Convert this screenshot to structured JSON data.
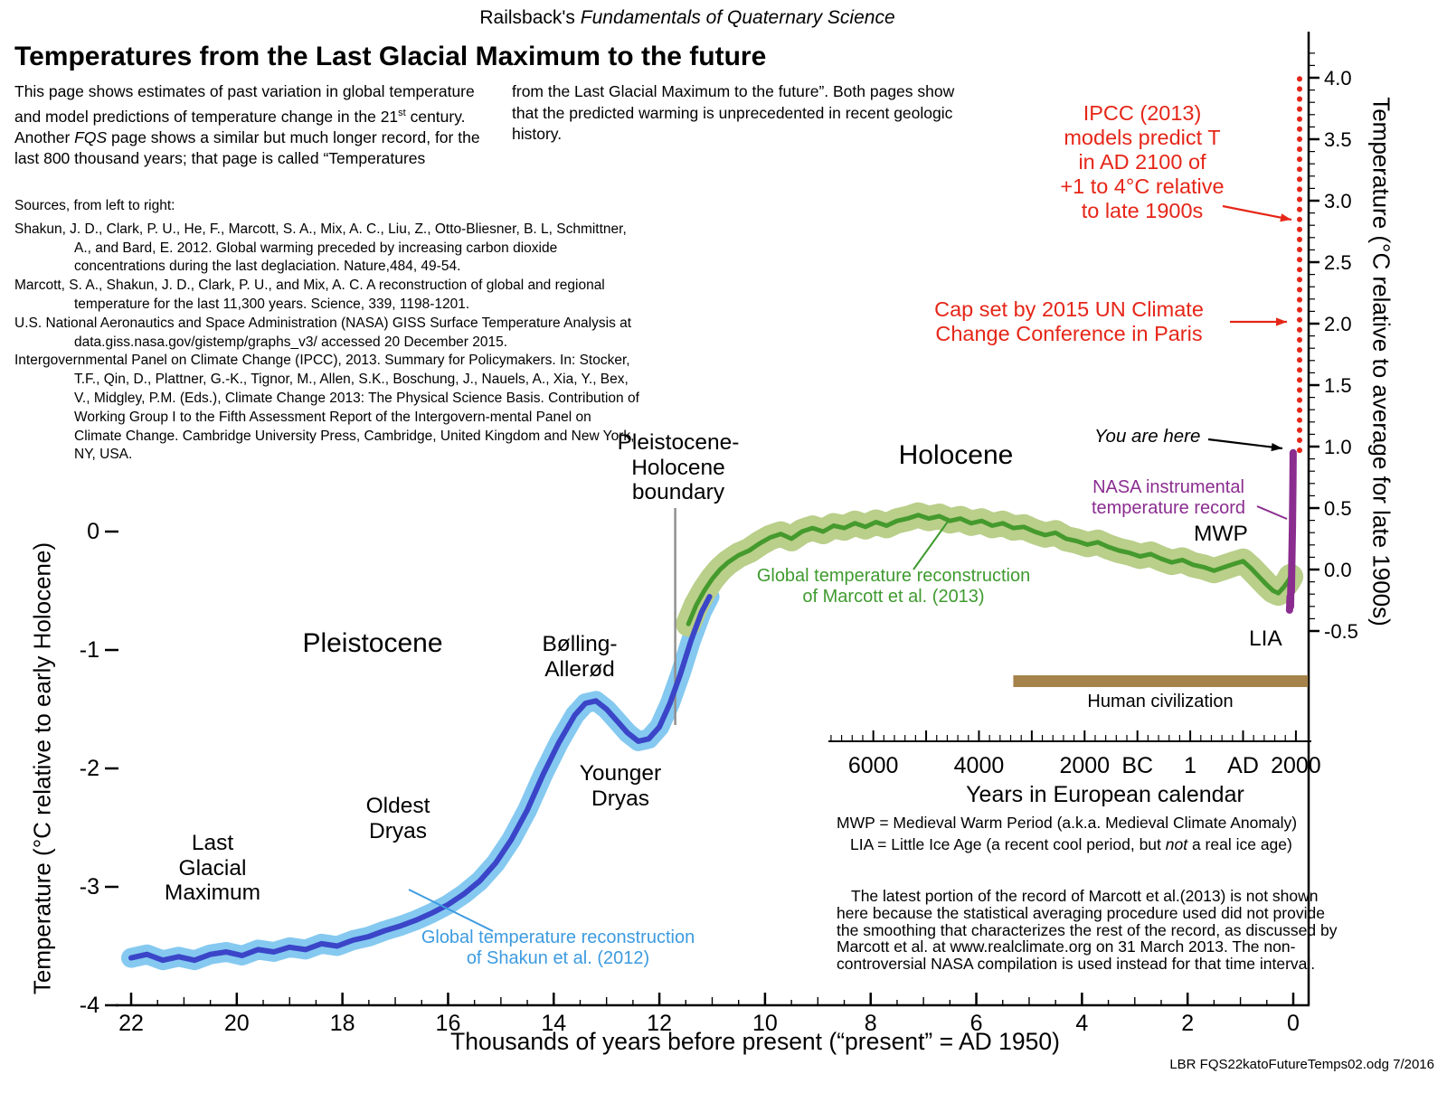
{
  "header": {
    "series_prefix": "Railsback's ",
    "series_italic": "Fundamentals of Quaternary Science",
    "page_title": "Temperatures from the Last Glacial Maximum to the future"
  },
  "intro": {
    "col1_seg1": "This page shows estimates of past variation in global temperature and model predictions of temperature change in the 21",
    "col1_sup": "st",
    "col1_seg2": " century. Another ",
    "col1_italic": "FQS",
    "col1_seg3": " page shows a similar but much longer record, for the last 800 thousand years; that page is called “Temperatures",
    "col2": "from the Last Glacial Maximum to the future”. Both pages show that the predicted warming is unprecedented in recent geologic history."
  },
  "sources": {
    "heading": "Sources, from left to right:",
    "items": [
      "Shakun, J. D., Clark, P. U., He, F., Marcott, S. A., Mix, A. C., Liu, Z., Otto-Bliesner, B. L, Schmittner, A., and Bard, E. 2012. Global warming preceded by increasing carbon dioxide concentrations during the last deglaciation. Nature,484, 49-54.",
      "Marcott, S. A., Shakun, J. D., Clark, P. U., and Mix, A. C. A reconstruction of global and regional temperature for the last 11,300 years. Science, 339, 1198-1201.",
      "U.S. National Aeronautics and Space Administration (NASA) GISS Surface Temperature Analysis at data.giss.nasa.gov/gistemp/graphs_v3/ accessed 20 December 2015.",
      "Intergovernmental Panel on Climate Change (IPCC), 2013. Summary for Policymakers. In: Stocker, T.F., Qin, D., Plattner, G.-K., Tignor, M., Allen, S.K., Boschung, J., Nauels, A., Xia, Y., Bex, V., Midgley, P.M. (Eds.), Climate Change 2013: The Physical Science Basis. Contribution of Working Group I to the Fifth Assessment Report of the Intergovern-mental Panel on Climate Change. Cambridge University Press, Cambridge, United Kingdom and New York, NY, USA."
    ]
  },
  "colors": {
    "red": "#e52618",
    "purple": "#8a2d8f",
    "green": "#3f9b2f",
    "light_blue_text": "#3d9be0",
    "blue_line": "#3b45c8",
    "blue_band": "#85c9f0",
    "green_line": "#459a2d",
    "green_band": "#b9cf8a",
    "brown": "#a5834b",
    "gray": "#909090"
  },
  "labels": {
    "holocene": "Holocene",
    "pleistocene": "Pleistocene",
    "ph_boundary": "Pleistocene-\nHolocene\nboundary",
    "bolling": "Bølling-\nAllerød",
    "younger_dryas": "Younger\nDryas",
    "oldest_dryas": "Oldest\nDryas",
    "lgm": "Last\nGlacial\nMaximum",
    "mwp": "MWP",
    "lia": "LIA",
    "you_are_here": "You are here",
    "nasa": "NASA instrumental\ntemperature record",
    "ipcc": "IPCC (2013)\nmodels predict T\nin AD 2100 of\n+1 to 4°C relative\nto late 1900s",
    "cap": "Cap set by 2015 UN Climate\nChange Conference in Paris",
    "marcott_series": "Global temperature reconstruction\nof Marcott et al. (2013)",
    "shakun_series": "Global temperature reconstruction\nof Shakun et al. (2012)",
    "human_civilization": "Human civilization",
    "mwp_definition": "MWP = Medieval Warm Period (a.k.a. Medieval Climate Anomaly)",
    "lia_definition_pre": "LIA = Little Ice Age (a recent cool period, but ",
    "lia_definition_italic": "not",
    "lia_definition_post": " a real ice age)",
    "note": "The latest portion of the record of Marcott et al.(2013) is not shown here because the statistical averaging procedure used did not provide the smoothing that characterizes the rest of the record, as discussed by Marcott et al. at www.realclimate.org on 31 March 2013.  The non-controversial NASA compilation is used instead for that time interval.",
    "footer": "LBR  FQS22katoFutureTemps02.odg  7/2016"
  },
  "chart_data": {
    "type": "line",
    "title": "Temperatures from the Last Glacial Maximum to the future",
    "x_axis": {
      "label": "Thousands of years before present (“present” = AD 1950)",
      "range": [
        22,
        0
      ],
      "direction": "reversed",
      "ticks": [
        22,
        20,
        18,
        16,
        14,
        12,
        10,
        8,
        6,
        4,
        2,
        0
      ]
    },
    "y_axis_left": {
      "label": "Temperature (°C relative to early Holocene)",
      "range": [
        -4,
        0.6
      ],
      "ticks": [
        0,
        -1,
        -2,
        -3,
        -4
      ]
    },
    "y_axis_right": {
      "label": "Temperature (°C relative to average for late 1900s)",
      "range": [
        -0.5,
        4.2
      ],
      "ticks": [
        4.0,
        3.5,
        3.0,
        2.5,
        2.0,
        1.5,
        1.0,
        0.5,
        0.0,
        -0.5
      ]
    },
    "calendar_axis": {
      "label": "Years in European calendar",
      "labels": [
        {
          "text": "6000",
          "kyr": 7.95
        },
        {
          "text": "4000",
          "kyr": 5.95
        },
        {
          "text": "2000",
          "kyr": 3.95
        },
        {
          "text": "BC",
          "kyr": 2.95
        },
        {
          "text": "1",
          "kyr": 1.95
        },
        {
          "text": "AD",
          "kyr": 0.95
        },
        {
          "text": "2000",
          "kyr": -0.05
        }
      ]
    },
    "boundary_line": {
      "name": "Pleistocene-Holocene boundary",
      "kyr": 11.7
    },
    "human_civilization_bar": {
      "start_kyr": 5.3,
      "end_kyr": -0.28,
      "color": "#a5834b"
    },
    "series": [
      {
        "id": "shakun",
        "name": "Global temperature reconstruction of Shakun et al. (2012)",
        "axis": "left",
        "color": "#3b45c8",
        "band_color": "#85c9f0",
        "width": 6,
        "band_width": 22,
        "points": [
          [
            22.0,
            -3.6
          ],
          [
            21.7,
            -3.57
          ],
          [
            21.4,
            -3.62
          ],
          [
            21.1,
            -3.59
          ],
          [
            20.8,
            -3.62
          ],
          [
            20.5,
            -3.57
          ],
          [
            20.2,
            -3.55
          ],
          [
            19.9,
            -3.58
          ],
          [
            19.6,
            -3.53
          ],
          [
            19.3,
            -3.55
          ],
          [
            19.0,
            -3.51
          ],
          [
            18.7,
            -3.53
          ],
          [
            18.4,
            -3.48
          ],
          [
            18.1,
            -3.5
          ],
          [
            17.8,
            -3.45
          ],
          [
            17.5,
            -3.42
          ],
          [
            17.2,
            -3.37
          ],
          [
            16.9,
            -3.33
          ],
          [
            16.6,
            -3.28
          ],
          [
            16.3,
            -3.22
          ],
          [
            16.0,
            -3.15
          ],
          [
            15.7,
            -3.06
          ],
          [
            15.4,
            -2.95
          ],
          [
            15.1,
            -2.8
          ],
          [
            14.8,
            -2.6
          ],
          [
            14.5,
            -2.35
          ],
          [
            14.2,
            -2.05
          ],
          [
            13.9,
            -1.78
          ],
          [
            13.6,
            -1.55
          ],
          [
            13.4,
            -1.45
          ],
          [
            13.2,
            -1.43
          ],
          [
            13.0,
            -1.5
          ],
          [
            12.8,
            -1.6
          ],
          [
            12.6,
            -1.7
          ],
          [
            12.4,
            -1.77
          ],
          [
            12.2,
            -1.75
          ],
          [
            12.0,
            -1.65
          ],
          [
            11.8,
            -1.45
          ],
          [
            11.6,
            -1.2
          ],
          [
            11.4,
            -0.92
          ],
          [
            11.2,
            -0.68
          ],
          [
            11.05,
            -0.55
          ]
        ]
      },
      {
        "id": "marcott",
        "name": "Global temperature reconstruction of Marcott et al. (2013)",
        "axis": "left",
        "color": "#459a2d",
        "band_color": "#b9cf8a",
        "width": 5,
        "band_width": 28,
        "points": [
          [
            11.45,
            -0.78
          ],
          [
            11.3,
            -0.62
          ],
          [
            11.15,
            -0.5
          ],
          [
            11.0,
            -0.4
          ],
          [
            10.85,
            -0.32
          ],
          [
            10.7,
            -0.26
          ],
          [
            10.5,
            -0.2
          ],
          [
            10.3,
            -0.16
          ],
          [
            10.1,
            -0.1
          ],
          [
            9.9,
            -0.05
          ],
          [
            9.7,
            -0.02
          ],
          [
            9.5,
            -0.06
          ],
          [
            9.3,
            0.0
          ],
          [
            9.1,
            0.03
          ],
          [
            8.9,
            0.0
          ],
          [
            8.7,
            0.05
          ],
          [
            8.5,
            0.03
          ],
          [
            8.3,
            0.07
          ],
          [
            8.1,
            0.04
          ],
          [
            7.9,
            0.08
          ],
          [
            7.7,
            0.05
          ],
          [
            7.5,
            0.09
          ],
          [
            7.3,
            0.11
          ],
          [
            7.1,
            0.14
          ],
          [
            6.9,
            0.11
          ],
          [
            6.7,
            0.13
          ],
          [
            6.5,
            0.09
          ],
          [
            6.3,
            0.11
          ],
          [
            6.1,
            0.07
          ],
          [
            5.9,
            0.09
          ],
          [
            5.7,
            0.05
          ],
          [
            5.5,
            0.07
          ],
          [
            5.3,
            0.03
          ],
          [
            5.1,
            0.04
          ],
          [
            4.9,
            0.0
          ],
          [
            4.7,
            -0.03
          ],
          [
            4.5,
            -0.01
          ],
          [
            4.3,
            -0.06
          ],
          [
            4.1,
            -0.08
          ],
          [
            3.9,
            -0.11
          ],
          [
            3.7,
            -0.09
          ],
          [
            3.5,
            -0.13
          ],
          [
            3.3,
            -0.16
          ],
          [
            3.1,
            -0.18
          ],
          [
            2.9,
            -0.21
          ],
          [
            2.7,
            -0.19
          ],
          [
            2.5,
            -0.23
          ],
          [
            2.3,
            -0.26
          ],
          [
            2.1,
            -0.24
          ],
          [
            1.9,
            -0.28
          ],
          [
            1.7,
            -0.3
          ],
          [
            1.5,
            -0.33
          ],
          [
            1.3,
            -0.3
          ],
          [
            1.1,
            -0.27
          ],
          [
            0.95,
            -0.25
          ],
          [
            0.8,
            -0.31
          ],
          [
            0.65,
            -0.38
          ],
          [
            0.5,
            -0.45
          ],
          [
            0.38,
            -0.5
          ],
          [
            0.28,
            -0.52
          ],
          [
            0.18,
            -0.47
          ],
          [
            0.1,
            -0.42
          ],
          [
            0.05,
            -0.38
          ]
        ]
      },
      {
        "id": "nasa",
        "name": "NASA instrumental temperature record",
        "axis": "right",
        "color": "#8a2d8f",
        "width": 8,
        "points": [
          [
            0.07,
            -0.33
          ],
          [
            0.06,
            -0.22
          ],
          [
            0.052,
            -0.3
          ],
          [
            0.044,
            -0.12
          ],
          [
            0.036,
            -0.18
          ],
          [
            0.028,
            0.05
          ],
          [
            0.022,
            0.18
          ],
          [
            0.016,
            0.35
          ],
          [
            0.01,
            0.55
          ],
          [
            0.005,
            0.75
          ],
          [
            0.001,
            0.95
          ]
        ]
      },
      {
        "id": "ipcc",
        "name": "IPCC (2013) model projections for AD 2100 (+1 to 4°C relative to late 1900s)",
        "axis": "right",
        "color": "#e52618",
        "width": 6,
        "style": "dotted",
        "points": [
          [
            -0.12,
            0.97
          ],
          [
            -0.12,
            4.05
          ]
        ]
      }
    ],
    "arrows": [
      {
        "id": "ipcc-arrow",
        "from": [
          1352,
          228
        ],
        "to": [
          1428,
          243
        ],
        "color": "#e52618",
        "width": 2.2,
        "head": true
      },
      {
        "id": "cap-arrow",
        "from": [
          1360,
          356
        ],
        "to": [
          1423,
          356
        ],
        "color": "#e52618",
        "width": 2.2,
        "head": true
      },
      {
        "id": "you-are-here-arrow",
        "from": [
          1336,
          486
        ],
        "to": [
          1418,
          496
        ],
        "color": "#000000",
        "width": 2.2,
        "head": true
      },
      {
        "id": "nasa-connector",
        "from": [
          1390,
          560
        ],
        "to": [
          1423,
          574
        ],
        "color": "#8a2d8f",
        "width": 2,
        "head": false
      },
      {
        "id": "marcott-connector",
        "from": [
          1010,
          630
        ],
        "to": [
          1048,
          577
        ],
        "color": "#3f9b2f",
        "width": 2,
        "head": false
      },
      {
        "id": "shakun-connector",
        "from": [
          545,
          1030
        ],
        "to": [
          452,
          984
        ],
        "color": "#3d9be0",
        "width": 2,
        "head": false
      }
    ]
  }
}
